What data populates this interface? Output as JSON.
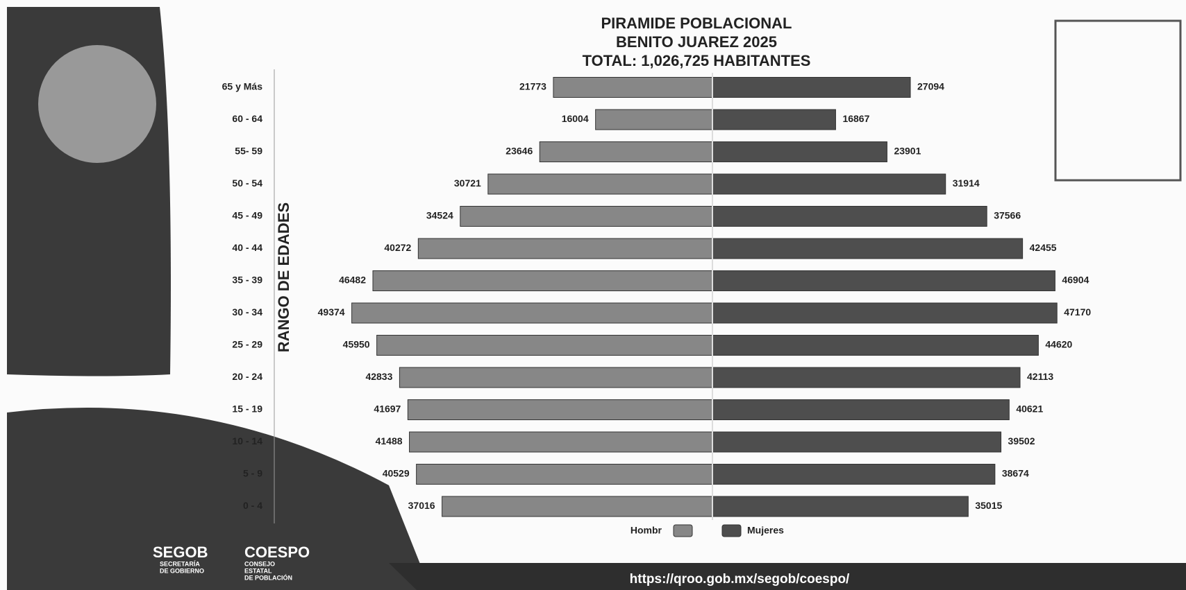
{
  "chart_data": {
    "type": "pyramid",
    "title": [
      "PIRAMIDE POBLACIONAL",
      "BENITO JUAREZ 2025",
      "TOTAL: 1,026,725 HABITANTES"
    ],
    "y_label": "RANGO DE EDADES",
    "categories": [
      "65 y Más",
      "60 - 64",
      "55- 59",
      "50 - 54",
      "45 - 49",
      "40 - 44",
      "35 - 39",
      "30 - 34",
      "25 - 29",
      "20 - 24",
      "15 - 19",
      "10 - 14",
      "5 - 9",
      "0 - 4"
    ],
    "series": [
      {
        "name": "Hombr",
        "color": "#878787",
        "side": "left",
        "values": [
          21773,
          16004,
          23646,
          30721,
          34524,
          40272,
          46482,
          49374,
          45950,
          42833,
          41697,
          41488,
          40529,
          37016
        ]
      },
      {
        "name": "Mujeres",
        "color": "#4e4e4e",
        "side": "right",
        "values": [
          27094,
          16867,
          23901,
          31914,
          37566,
          42455,
          46904,
          47170,
          44620,
          42113,
          40621,
          39502,
          38674,
          35015
        ]
      }
    ],
    "xlim": [
      0,
      50000
    ]
  },
  "footer": {
    "segob": "SEGOB",
    "segob_sub": [
      "SECRETARÍA",
      "DE GOBIERNO"
    ],
    "coespo": "COESPO",
    "coespo_sub": [
      "CONSEJO",
      "ESTATAL",
      "DE POBLACIÓN"
    ],
    "url": "https://qroo.gob.mx/segob/coespo/"
  }
}
